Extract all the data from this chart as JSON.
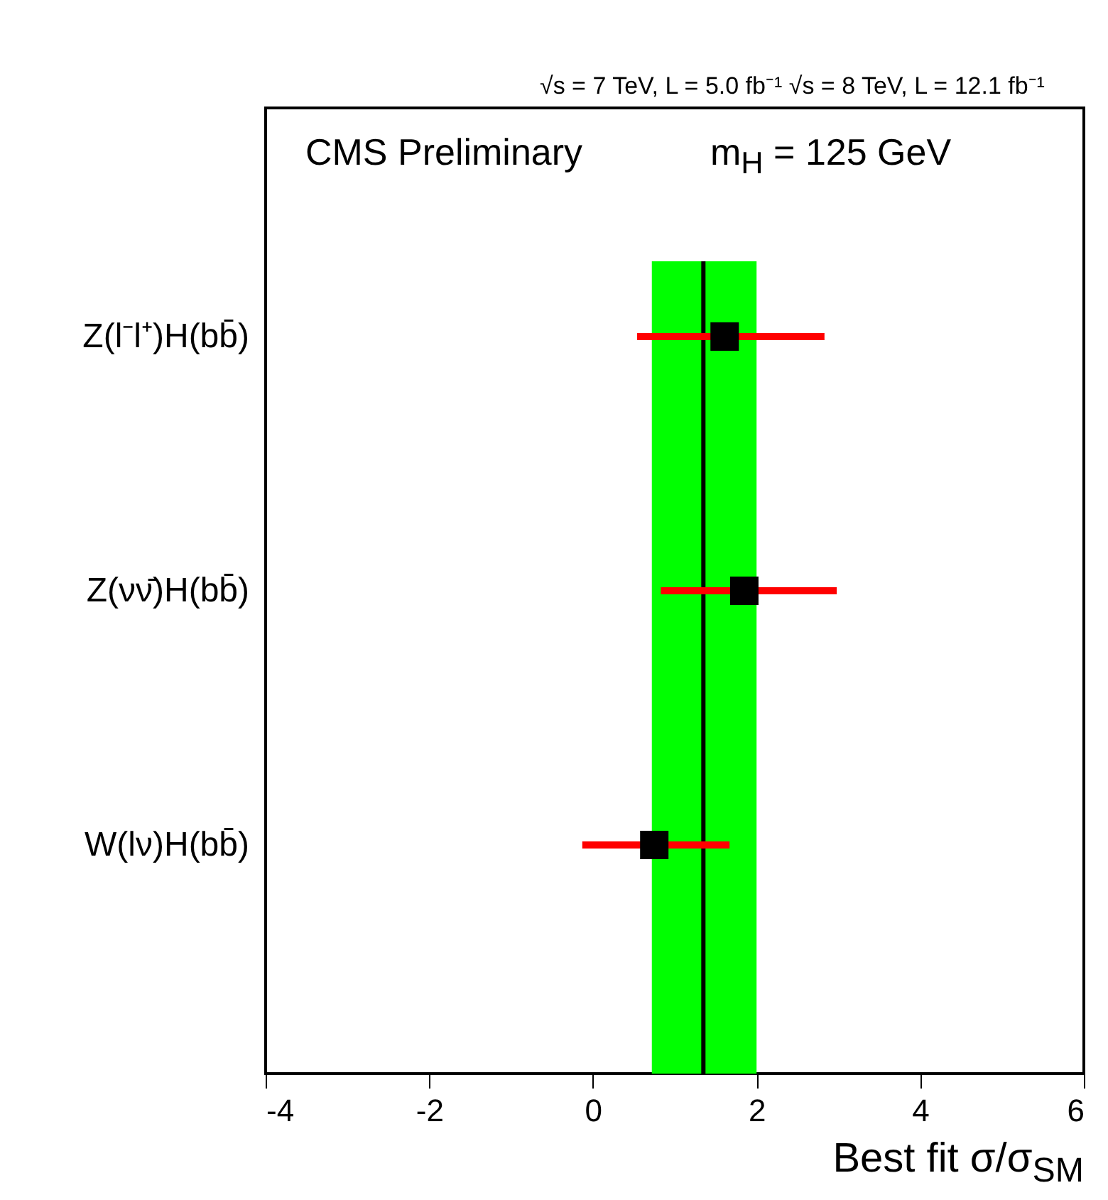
{
  "chart_data": {
    "type": "scatter",
    "orientation": "horizontal",
    "title": "√s = 7 TeV, L = 5.0 fb⁻¹ √s = 8 TeV, L = 12.1 fb⁻¹",
    "annotations": [
      "CMS Preliminary",
      "m$_{H}$ = 125 GeV"
    ],
    "xlabel": "Best fit σ/σ$_{SM}$",
    "categories": [
      "Z(l⁻l⁺)H(bb̄)",
      "Z(νν̄)H(bb̄)",
      "W(lν)H(bb̄)"
    ],
    "series": [
      {
        "color": "#000000",
        "values": [
          1.61,
          1.85,
          0.75
        ],
        "errors": [
          [
            0.54,
            2.83
          ],
          [
            0.83,
            2.98
          ],
          [
            -0.13,
            1.67
          ]
        ]
      }
    ],
    "marker": "square",
    "xlim": [
      -4,
      6
    ],
    "xticks": [
      -4,
      -2,
      0,
      2,
      4,
      6
    ],
    "bands": [
      {
        "axis": "x",
        "from": 0.72,
        "to": 2.0,
        "color": "#00ff00"
      }
    ],
    "ref_lines": [
      {
        "axis": "x",
        "value": 1.35,
        "color": "#000000"
      }
    ]
  }
}
